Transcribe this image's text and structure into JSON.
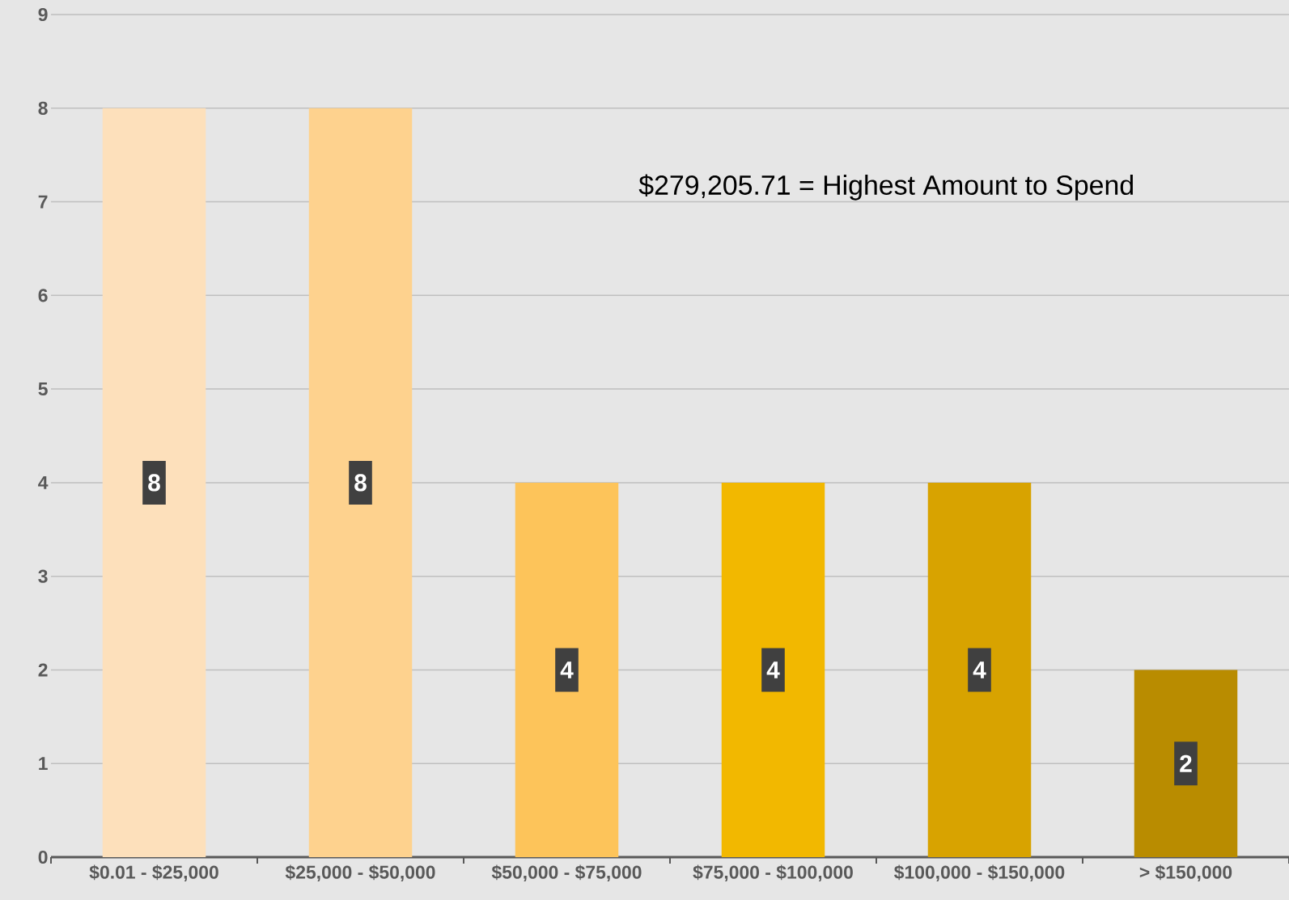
{
  "chart_data": {
    "type": "bar",
    "categories": [
      "$0.01 - $25,000",
      "$25,000 - $50,000",
      "$50,000 - $75,000",
      "$75,000 - $100,000",
      "$100,000 - $150,000",
      "> $150,000"
    ],
    "values": [
      8,
      8,
      4,
      4,
      4,
      2
    ],
    "colors": [
      "#fde0bb",
      "#fed28e",
      "#fdc45a",
      "#f2b800",
      "#d8a300",
      "#b98c00"
    ],
    "ylim": [
      0,
      9
    ],
    "yticks": [
      0,
      1,
      2,
      3,
      4,
      5,
      6,
      7,
      8,
      9
    ],
    "grid": "y",
    "data_labels": true,
    "annotations": [
      "$279,205.71 = Highest Amount to Spend"
    ]
  }
}
